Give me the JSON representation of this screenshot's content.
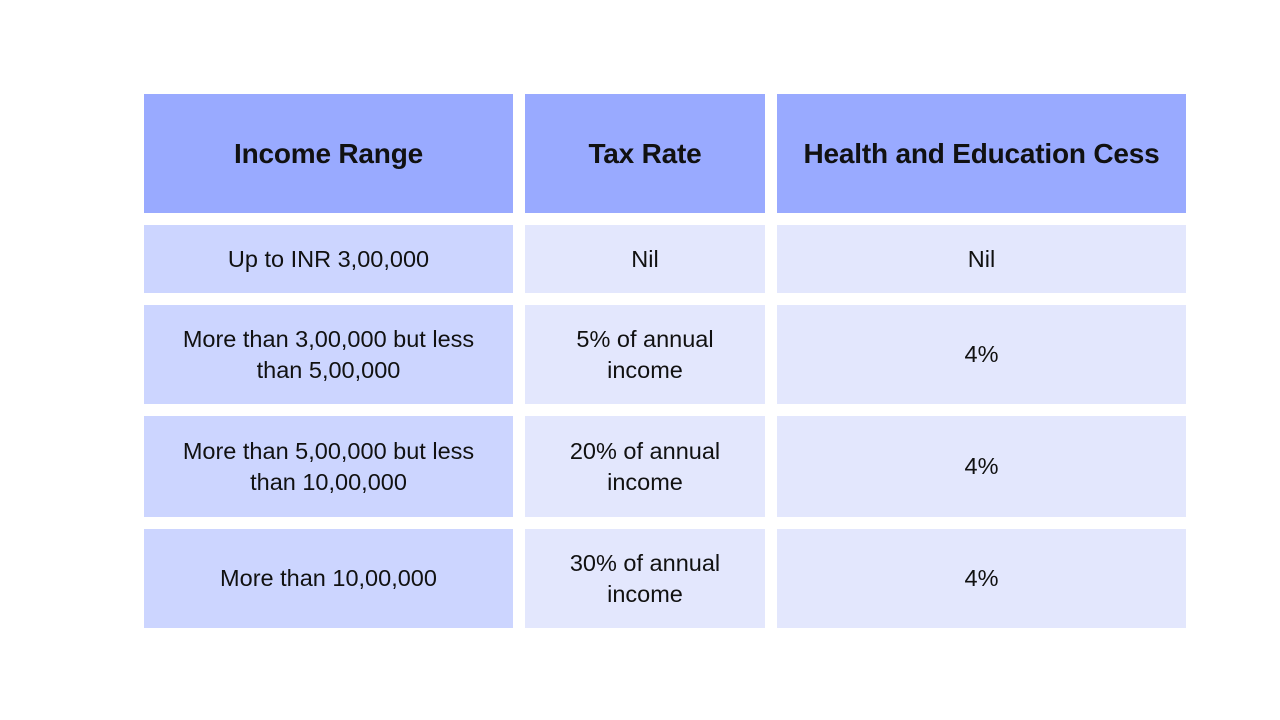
{
  "colors": {
    "header_bg": "#99aaff",
    "first_col_bg": "#ccd5ff",
    "other_col_bg": "#e3e7fd",
    "text": "#111111"
  },
  "table": {
    "headers": [
      "Income Range",
      "Tax Rate",
      "Health and Education Cess"
    ],
    "rows": [
      [
        "Up to INR 3,00,000",
        "Nil",
        "Nil"
      ],
      [
        "More than 3,00,000 but less than 5,00,000",
        "5% of annual income",
        "4%"
      ],
      [
        "More than 5,00,000 but less than 10,00,000",
        "20% of annual income",
        "4%"
      ],
      [
        "More than 10,00,000",
        "30% of annual income",
        "4%"
      ]
    ]
  }
}
